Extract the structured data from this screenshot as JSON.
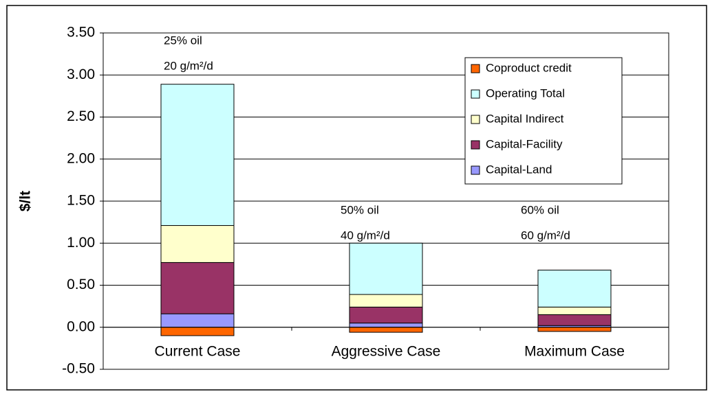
{
  "chart_data": {
    "type": "stacked-bar",
    "y_label": "$/lt",
    "categories": [
      "Current Case",
      "Aggressive Case",
      "Maximum Case"
    ],
    "annotations": [
      [
        "25% oil",
        "20 g/m²/d"
      ],
      [
        "50% oil",
        "40 g/m²/d"
      ],
      [
        "60% oil",
        "60 g/m²/d"
      ]
    ],
    "series": [
      {
        "name": "Coproduct credit",
        "color": "#ff6600",
        "values": [
          -0.1,
          -0.06,
          -0.05
        ]
      },
      {
        "name": "Operating Total",
        "color": "#ccffff",
        "values": [
          1.68,
          0.61,
          0.44
        ]
      },
      {
        "name": "Capital Indirect",
        "color": "#ffffcc",
        "values": [
          0.44,
          0.15,
          0.09
        ]
      },
      {
        "name": "Capital-Facility",
        "color": "#993366",
        "values": [
          0.61,
          0.19,
          0.13
        ]
      },
      {
        "name": "Capital-Land",
        "color": "#9999ff",
        "values": [
          0.16,
          0.05,
          0.02
        ]
      }
    ],
    "ylim": [
      -0.5,
      3.5
    ],
    "yticks": [
      {
        "value": -0.5,
        "label": "-0.50"
      },
      {
        "value": 0,
        "label": "0.00"
      },
      {
        "value": 0.5,
        "label": "0.50"
      },
      {
        "value": 1,
        "label": "1.00"
      },
      {
        "value": 1.5,
        "label": "1.50"
      },
      {
        "value": 2,
        "label": "2.00"
      },
      {
        "value": 2.5,
        "label": "2.50"
      },
      {
        "value": 3,
        "label": "3.00"
      },
      {
        "value": 3.5,
        "label": "3.50"
      }
    ],
    "grid": true,
    "legend": "upper-right"
  }
}
